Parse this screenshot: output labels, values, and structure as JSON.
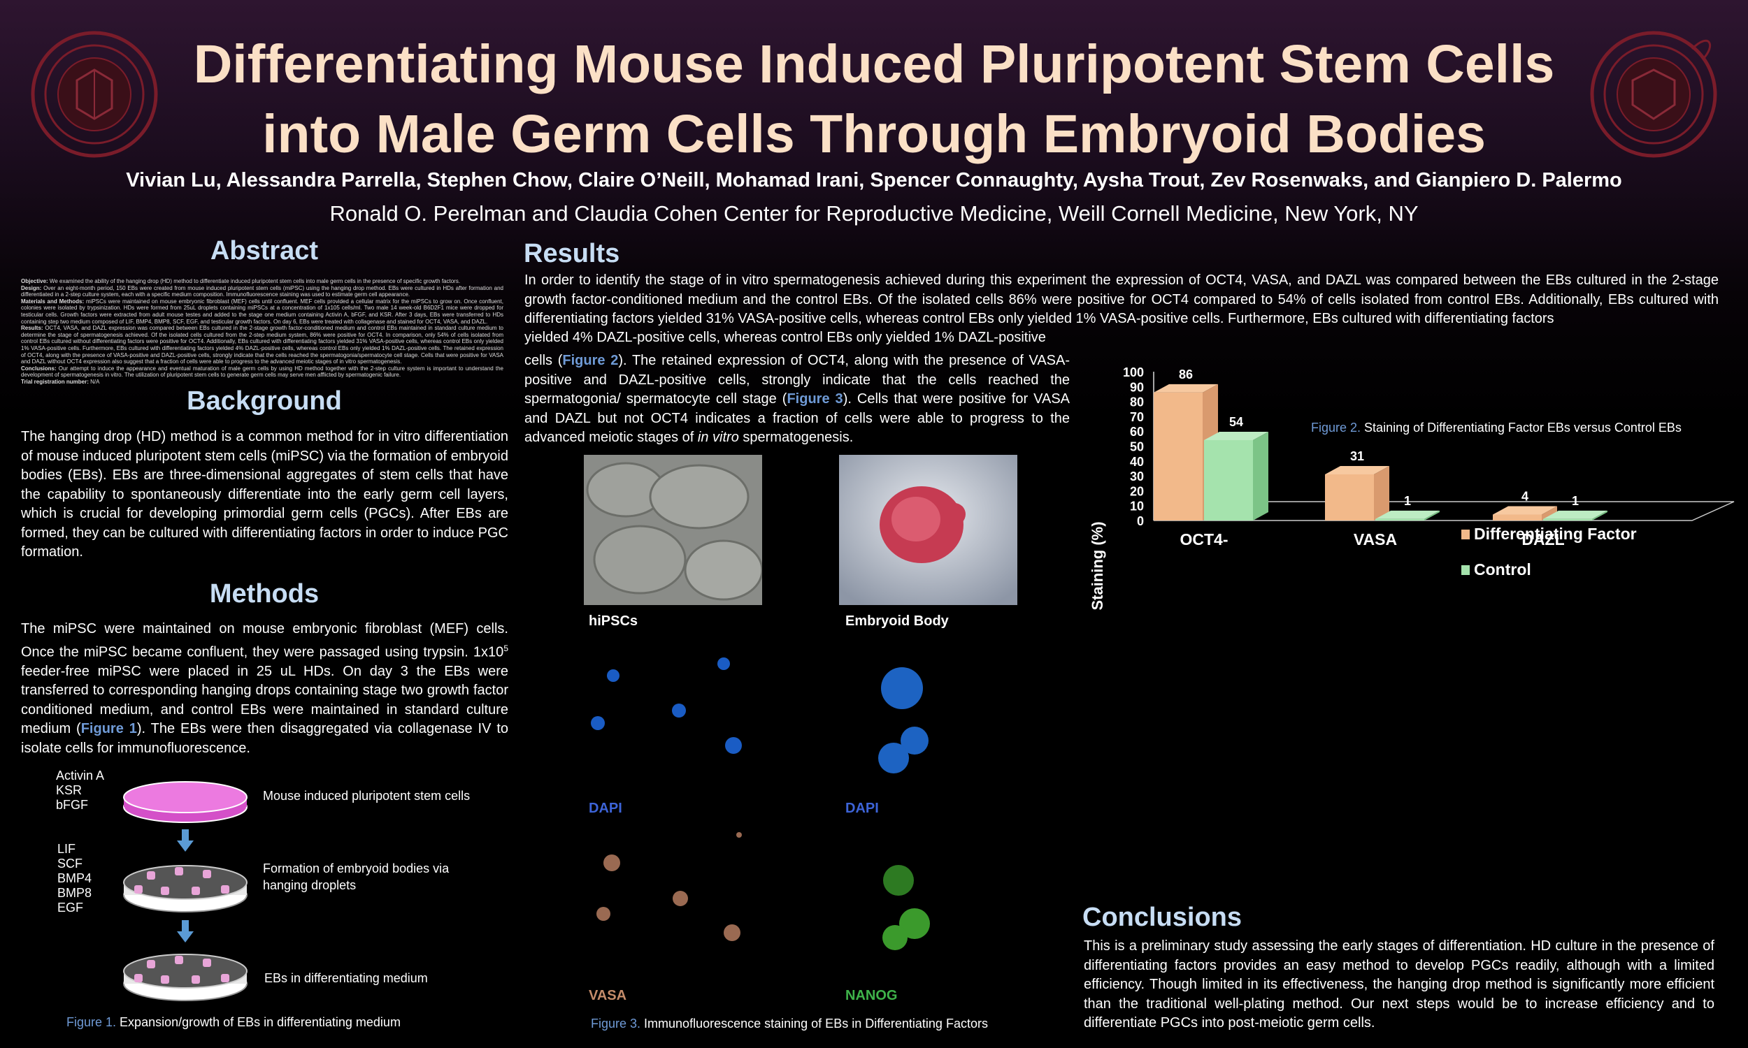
{
  "header": {
    "title_line1": "Differentiating Mouse Induced Pluripotent Stem Cells",
    "title_line2": "into Male Germ Cells Through Embryoid Bodies",
    "authors": "Vivian Lu, Alessandra Parrella, Stephen Chow, Claire O’Neill, Mohamad Irani, Spencer Connaughty, Aysha Trout, Zev Rosenwaks, and Gianpiero D. Palermo",
    "affiliation": "Ronald O. Perelman and Claudia Cohen Center for Reproductive Medicine, Weill Cornell Medicine, New York, NY"
  },
  "abstract": {
    "heading": "Abstract",
    "objective_label": "Objective:",
    "objective": "We examined the ability of the hanging drop (HD) method to differentiate induced pluripotent stem cells into male germ cells in the presence of specific growth factors.",
    "design_label": "Design:",
    "design": "Over an eight-month period, 150 EBs were created from mouse induced pluripotent stem cells (miPSC) using the hanging drop method. EBs were cultured in HDs after formation and differentiated in a 2-step culture system, each with a specific medium composition. Immunofluorescence staining was used to estimate germ cell appearance.",
    "methods_label": "Materials and Methods:",
    "methods": "miPSCs were maintained on mouse embryonic fibroblast (MEF) cells until confluent. MEF cells provided a cellular matrix for the miPSCs to grow on. Once confluent, colonies were isolated by trypsinization. HDs were formed from 25uL droplets containing miPSCs at a concentration of 1x105 cells/ml. Two male 14 week-old B6D2F1 mice were dropped for testicular cells. Growth factors were extracted from adult mouse testes and added to the stage one medium containing Activin A, bFGF, and KSR. After 3 days, EBs were transferred to HDs containing step two medium composed of LIF, BMP4, BMP8, SCF, EGF, and testicular growth factors. On day 6, EBs were treated with collagenase and stained for OCT4, VASA, and DAZL.",
    "results_label": "Results:",
    "results": "OCT4, VASA, and DAZL expression was compared between EBs cultured in the 2-stage growth factor-conditioned medium and control EBs maintained in standard culture medium to determine the stage of spermatogenesis achieved. Of the isolated cells cultured from the 2-step medium system, 86% were positive for OCT4. In comparison, only 54% of cells isolated from control EBs cultured without differentiating factors were positive for OCT4. Additionally, EBs cultured with differentiating factors yielded 31% VASA-positive cells, whereas control EBs only yielded 1% VASA-positive cells. Furthermore, EBs cultured with differentiating factors yielded 4% DAZL-positive cells, whereas control EBs only yielded 1% DAZL-positive cells. The retained expression of OCT4, along with the presence of VASA-positive and DAZL-positive cells, strongly indicate that the cells reached the spermatogonia/spermatocyte cell stage. Cells that were positive for VASA and DAZL without OCT4 expression also suggest that a fraction of cells were able to progress to the advanced meiotic stages of in vitro spermatogenesis.",
    "conclusions_label": "Conclusions:",
    "conclusions": "Our attempt to induce the appearance and eventual maturation of male germ cells by using HD method together with the 2-step culture system is important to understand the development of spermatogenesis in vitro. The utilization of pluripotent stem cells to generate germ cells may serve men afflicted by spermatogenic failure.",
    "trial_label": "Trial registration number:",
    "trial": "N/A"
  },
  "background": {
    "heading": "Background",
    "text": "The hanging drop (HD) method is a common method for in vitro differentiation of mouse induced pluripotent stem cells (miPSC) via the formation of embryoid bodies (EBs). EBs are three-dimensional aggregates of stem cells that have the capability to spontaneously differentiate into the early germ cell layers, which is crucial for developing primordial germ cells (PGCs). After EBs are formed, they can be cultured with differentiating factors in order to induce PGC formation."
  },
  "methods": {
    "heading": "Methods",
    "text_a": "The miPSC were maintained on mouse embryonic fibroblast (MEF) cells. Once the miPSC became confluent, they were passaged using trypsin. 1x10",
    "sup": "5",
    "text_b": " feeder-free miPSC were placed in 25 uL HDs. On day 3 the EBs were transferred to corresponding hanging drops containing stage two growth factor conditioned medium, and control EBs were maintained in standard culture medium (",
    "figref": "Figure 1",
    "text_c": "). The EBs were then disaggregated via collagenase IV to isolate cells for immunofluorescence."
  },
  "figure1": {
    "step1_factors": [
      "Activin A",
      "KSR",
      "bFGF"
    ],
    "step1_desc": "Mouse induced pluripotent stem cells",
    "step2_factors": [
      "LIF",
      "SCF",
      "BMP4",
      "BMP8",
      "EGF"
    ],
    "step2_desc_line1": "Formation of embryoid bodies via",
    "step2_desc_line2": "hanging droplets",
    "step3_desc": "EBs in differentiating medium",
    "caption_label": "Figure 1.",
    "caption_text": " Expansion/growth  of EBs in differentiating medium"
  },
  "results": {
    "heading": "Results",
    "para_full": "In order to identify the stage of in vitro spermatogenesis achieved during this experiment the expression of OCT4, VASA, and DAZL was compared between the EBs cultured in the 2-stage growth factor-conditioned medium and the control EBs. Of the isolated cells 86% were positive for OCT4 compared to 54% of cells isolated from control EBs. Additionally, EBs cultured with differentiating factors yielded 31% VASA-positive cells, whereas control EBs only yielded 1% VASA-positive cells. Furthermore, EBs cultured with differentiating factors",
    "line5": "yielded 4% DAZL-positive cells, whereas control EBs only yielded 1% DAZL-positive",
    "narrow_a": "cells (",
    "narrow_fig2": "Figure 2",
    "narrow_b": "). The retained expression of OCT4, along with the presence of VASA-positive and DAZL-positive cells, strongly indicate that the cells reached the spermatogonia/ spermatocyte cell stage (",
    "narrow_fig3": "Figure 3",
    "narrow_c": "). Cells that were positive for VASA and DAZL but not OCT4 indicates a fraction of cells were able to progress to the advanced meiotic stages of ",
    "narrow_italic": "in vitro",
    "narrow_d": " spermatogenesis."
  },
  "figure3": {
    "labels": {
      "hipsc": "hiPSCs",
      "eb": "Embryoid Body",
      "dapi1": "DAPI",
      "dapi2": "DAPI",
      "vasa": "VASA",
      "nanog": "NANOG"
    },
    "caption_label": "Figure 3.",
    "caption_text": " Immunofluorescence  staining of EBs in Differentiating Factors"
  },
  "figure2": {
    "caption_label": "Figure 2.",
    "caption_text": " Staining of Differentiating Factor EBs versus Control EBs"
  },
  "chart_data": {
    "type": "bar",
    "categories": [
      "OCT4-",
      "VASA",
      "DAZL"
    ],
    "series": [
      {
        "name": "Differentiating Factor",
        "values": [
          86,
          31,
          4
        ],
        "color": "#f2b98a"
      },
      {
        "name": "Control",
        "values": [
          54,
          1,
          1
        ],
        "color": "#a5e3ad"
      }
    ],
    "title": "",
    "ylabel": "Staining (%)",
    "xlabel": "",
    "ylim": [
      0,
      100
    ],
    "yticks": [
      0,
      10,
      20,
      30,
      40,
      50,
      60,
      70,
      80,
      90,
      100
    ],
    "legend": "right",
    "style": "3d"
  },
  "conclusions": {
    "heading": "Conclusions",
    "text": "This is a preliminary study assessing the early stages of differentiation. HD culture in the presence of differentiating factors provides an easy method to develop PGCs readily, although with a limited efficiency. Though limited in its effectiveness, the hanging drop method is significantly more efficient than the traditional well-plating method. Our next steps would be to increase efficiency and to differentiate PGCs into post-meiotic germ cells."
  },
  "colors": {
    "title": "#fbe0c6",
    "heading": "#c7ddf4",
    "figure_ref": "#6f9ad6",
    "seal": "#8a1f2e"
  },
  "icons": {
    "left_seal": "weill-cornell-seal",
    "right_seal": "clinical-andrology-seal"
  }
}
